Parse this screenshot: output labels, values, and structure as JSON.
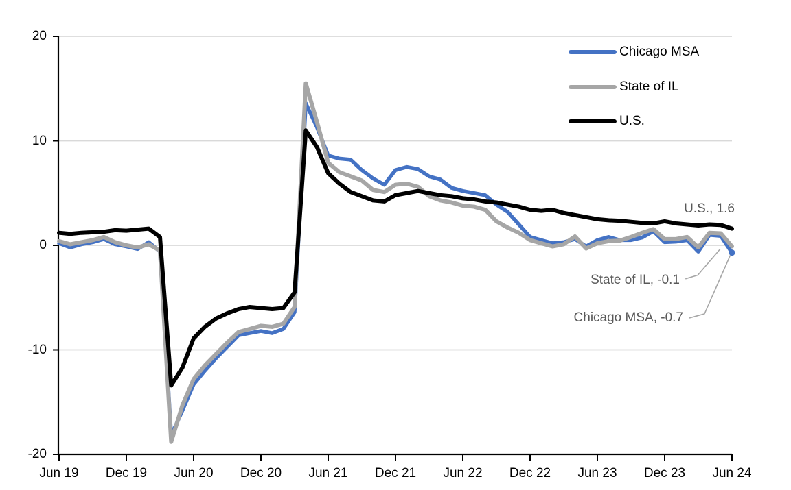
{
  "legend": {
    "items": [
      {
        "label": "Chicago MSA",
        "color": "#4472C4"
      },
      {
        "label": "State of IL",
        "color": "#A6A6A6"
      },
      {
        "label": "U.S.",
        "color": "#000000"
      }
    ]
  },
  "annotations": {
    "us_label": "U.S., 1.6",
    "state_il_label": "State of IL, -0.1",
    "chicago_label": "Chicago MSA, -0.7"
  },
  "colors": {
    "gridline": "#D9D9D9",
    "axis": "#000000",
    "leader_line": "#A6A6A6",
    "annotation_text": "#595959"
  },
  "chart_data": {
    "type": "line",
    "title": "",
    "xlabel": "",
    "ylabel": "",
    "frequency": "monthly",
    "x_start": "Jun 2019",
    "x_end": "Jun 2024",
    "ylim": [
      -20,
      20
    ],
    "y_tick_values": [
      20,
      10,
      0,
      -10,
      -20
    ],
    "y_tick_labels": [
      "20",
      "10",
      "0",
      "-10",
      "-20"
    ],
    "y_gridline_values": [
      20,
      10,
      0,
      -10
    ],
    "x_tick_months": [
      0,
      6,
      12,
      18,
      24,
      30,
      36,
      42,
      48,
      54,
      60
    ],
    "x_tick_labels": [
      "Jun 19",
      "Dec 19",
      "Jun 20",
      "Dec 20",
      "Jun 21",
      "Dec 21",
      "Jun 22",
      "Dec 22",
      "Jun 23",
      "Dec 23",
      "Jun 24"
    ],
    "legend_position": "top-right-inside",
    "grid": true,
    "series": [
      {
        "name": "Chicago MSA",
        "color": "#4472C4",
        "stroke_width": 5.5,
        "end_marker": true,
        "end_value": -0.7,
        "values": [
          0.2,
          -0.2,
          0.1,
          0.3,
          0.6,
          0.1,
          -0.1,
          -0.35,
          0.3,
          -0.6,
          -18.2,
          -15.8,
          -13.3,
          -12.0,
          -10.8,
          -9.7,
          -8.6,
          -8.4,
          -8.2,
          -8.4,
          -8.0,
          -6.4,
          13.6,
          11.3,
          8.6,
          8.3,
          8.2,
          7.2,
          6.4,
          5.8,
          7.2,
          7.5,
          7.3,
          6.6,
          6.3,
          5.5,
          5.2,
          5.0,
          4.8,
          3.9,
          3.2,
          2.0,
          0.8,
          0.5,
          0.2,
          0.3,
          0.6,
          -0.1,
          0.5,
          0.8,
          0.5,
          0.5,
          0.75,
          1.35,
          0.3,
          0.35,
          0.5,
          -0.6,
          1.0,
          0.9,
          -0.7
        ]
      },
      {
        "name": "State of IL",
        "color": "#A6A6A6",
        "stroke_width": 6,
        "end_marker": false,
        "end_value": -0.1,
        "values": [
          0.4,
          0.1,
          0.3,
          0.5,
          0.8,
          0.3,
          0.0,
          -0.2,
          0.1,
          -0.5,
          -18.8,
          -15.3,
          -12.8,
          -11.5,
          -10.4,
          -9.3,
          -8.3,
          -8.0,
          -7.7,
          -7.8,
          -7.5,
          -5.9,
          15.5,
          11.8,
          7.9,
          7.0,
          6.6,
          6.2,
          5.3,
          5.1,
          5.8,
          5.9,
          5.6,
          4.7,
          4.3,
          4.1,
          3.8,
          3.7,
          3.4,
          2.3,
          1.7,
          1.2,
          0.5,
          0.2,
          -0.1,
          0.1,
          0.85,
          -0.3,
          0.2,
          0.4,
          0.45,
          0.8,
          1.2,
          1.55,
          0.6,
          0.6,
          0.8,
          -0.2,
          1.2,
          1.15,
          -0.1
        ]
      },
      {
        "name": "U.S.",
        "color": "#000000",
        "stroke_width": 6,
        "end_marker": false,
        "end_value": 1.6,
        "values": [
          1.2,
          1.1,
          1.2,
          1.25,
          1.3,
          1.45,
          1.4,
          1.5,
          1.6,
          0.8,
          -13.4,
          -11.7,
          -8.9,
          -7.8,
          -7.0,
          -6.5,
          -6.1,
          -5.9,
          -6.0,
          -6.1,
          -6.0,
          -4.5,
          11.0,
          9.4,
          6.9,
          5.9,
          5.1,
          4.7,
          4.3,
          4.2,
          4.8,
          5.0,
          5.2,
          5.0,
          4.8,
          4.7,
          4.5,
          4.4,
          4.2,
          4.1,
          3.9,
          3.7,
          3.4,
          3.3,
          3.4,
          3.1,
          2.9,
          2.7,
          2.5,
          2.4,
          2.35,
          2.25,
          2.15,
          2.1,
          2.3,
          2.1,
          2.0,
          1.9,
          2.0,
          1.95,
          1.6
        ]
      }
    ],
    "leader_lines": [
      {
        "for": "State of IL",
        "points_month_value": [
          [
            55.85,
            -3.2
          ],
          [
            56.95,
            -2.85
          ],
          [
            58.95,
            -0.35
          ]
        ]
      },
      {
        "for": "Chicago MSA",
        "points_month_value": [
          [
            56.2,
            -6.95
          ],
          [
            57.55,
            -6.55
          ],
          [
            59.85,
            -0.95
          ]
        ]
      }
    ]
  }
}
